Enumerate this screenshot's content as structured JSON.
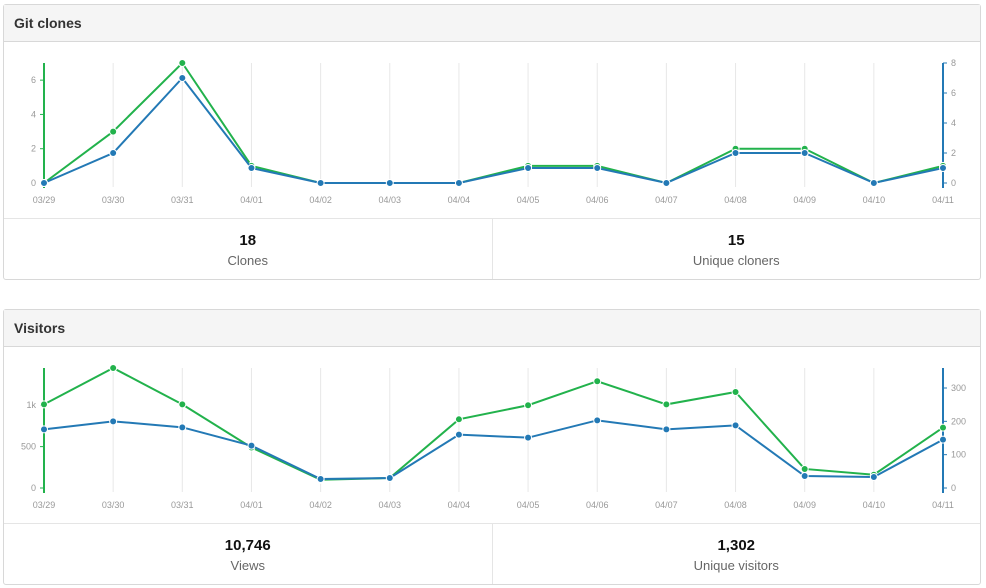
{
  "colors": {
    "green": "#22b24c",
    "blue": "#2379b5"
  },
  "chart_data": [
    {
      "type": "line",
      "title": "Git clones",
      "categories": [
        "03/29",
        "03/30",
        "03/31",
        "04/01",
        "04/02",
        "04/03",
        "04/04",
        "04/05",
        "04/06",
        "04/07",
        "04/08",
        "04/09",
        "04/10",
        "04/11"
      ],
      "left_axis": {
        "ticks": [
          0,
          2,
          4,
          6
        ],
        "tick_labels": [
          "0",
          "2",
          "4",
          "6"
        ],
        "range": [
          0,
          7
        ]
      },
      "right_axis": {
        "ticks": [
          0,
          2,
          4,
          6,
          8
        ],
        "tick_labels": [
          "0",
          "2",
          "4",
          "6",
          "8"
        ],
        "range": [
          0,
          8
        ]
      },
      "series": [
        {
          "name": "Clones",
          "axis": "left",
          "color": "#22b24c",
          "values": [
            0,
            3,
            7,
            1,
            0,
            0,
            0,
            1,
            1,
            0,
            2,
            2,
            0,
            1
          ]
        },
        {
          "name": "Unique cloners",
          "axis": "right",
          "color": "#2379b5",
          "values": [
            0,
            2,
            7,
            1,
            0,
            0,
            0,
            1,
            1,
            0,
            2,
            2,
            0,
            1
          ]
        }
      ],
      "stats": [
        {
          "value": "18",
          "label": "Clones"
        },
        {
          "value": "15",
          "label": "Unique cloners"
        }
      ]
    },
    {
      "type": "line",
      "title": "Visitors",
      "categories": [
        "03/29",
        "03/30",
        "03/31",
        "04/01",
        "04/02",
        "04/03",
        "04/04",
        "04/05",
        "04/06",
        "04/07",
        "04/08",
        "04/09",
        "04/10",
        "04/11"
      ],
      "left_axis": {
        "ticks": [
          0,
          500,
          1000
        ],
        "tick_labels": [
          "0",
          "500",
          "1k"
        ],
        "range": [
          0,
          1450
        ]
      },
      "right_axis": {
        "ticks": [
          0,
          100,
          200,
          300
        ],
        "tick_labels": [
          "0",
          "100",
          "200",
          "300"
        ],
        "range": [
          0,
          360
        ]
      },
      "series": [
        {
          "name": "Views",
          "axis": "left",
          "color": "#22b24c",
          "values": [
            1010,
            1450,
            1010,
            490,
            100,
            120,
            830,
            1000,
            1290,
            1010,
            1160,
            230,
            160,
            730
          ]
        },
        {
          "name": "Unique visitors",
          "axis": "right",
          "color": "#2379b5",
          "values": [
            176,
            200,
            182,
            127,
            27,
            30,
            160,
            151,
            203,
            176,
            188,
            36,
            33,
            145
          ]
        }
      ],
      "stats": [
        {
          "value": "10,746",
          "label": "Views"
        },
        {
          "value": "1,302",
          "label": "Unique visitors"
        }
      ]
    }
  ]
}
